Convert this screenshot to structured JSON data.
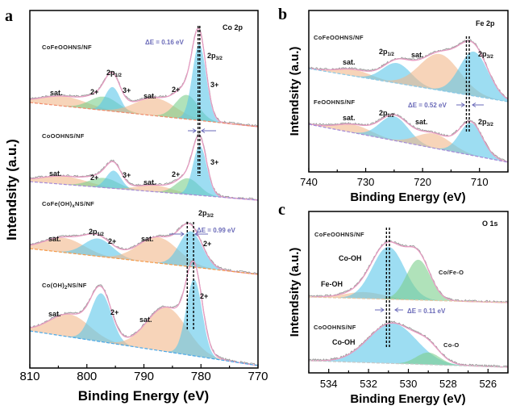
{
  "colors": {
    "co3": "#5cc6ea",
    "co2_green": "#7ccf8c",
    "sat": "#f2b88a",
    "envelope": "#e79cc2",
    "raw": "#9a9a9a",
    "delta": "#6a6ab8"
  },
  "panels": {
    "a": {
      "letter": "a",
      "core": "Co 2p",
      "xlabel": "Binding Energy (eV)",
      "ylabel": "Intendsity (a.u.)",
      "samples": [
        "CoFeOOHNS/NF",
        "CoOOHNS/NF",
        "CoFe(OH)",
        "Co(OH)"
      ],
      "sample_subs": {
        "cofeoh_sub": "x",
        "cofeoh_rest": "NS/NF",
        "cooh2_sub": "2",
        "cooh2_rest": "NS/NF"
      },
      "delta1": "ΔE = 0.16 eV",
      "delta2": "ΔE = 0.99 eV",
      "p": "2p",
      "p32": "3/2",
      "p12": "1/2",
      "sat": "sat.",
      "two": "2+",
      "three": "3+"
    },
    "b": {
      "letter": "b",
      "core": "Fe 2p",
      "xlabel": "Binding Energy (eV)",
      "ylabel": "Intendsity (a.u.)",
      "samples": [
        "CoFeOOHNS/NF",
        "FeOOHNS/NF"
      ],
      "delta": "ΔE = 0.52 eV",
      "p": "2p",
      "p32": "3/2",
      "p12": "1/2",
      "sat": "sat."
    },
    "c": {
      "letter": "c",
      "core": "O 1s",
      "xlabel": "Binding Energy (eV)",
      "ylabel": "Intendsity (a.u.)",
      "samples": [
        "CoFeOOHNS/NF",
        "CoOOHNS/NF"
      ],
      "delta": "ΔE = 0.11 eV",
      "cooh": "Co-OH",
      "feoh": "Fe-OH",
      "cofeo": "Co/Fe-O",
      "coo": "Co-O"
    }
  },
  "chart_data": [
    {
      "type": "line",
      "title": "Co 2p",
      "xlabel": "Binding Energy (eV)",
      "ylabel": "Intendsity (a.u.)",
      "xlim": [
        810,
        770
      ],
      "xticks": [
        810,
        800,
        790,
        780,
        770
      ],
      "reversed_x": true,
      "series": [
        {
          "name": "CoFeOOHNS/NF",
          "peaks": [
            {
              "label": "sat.",
              "center": 804,
              "height": 12,
              "sigma": 4,
              "color": "sat"
            },
            {
              "label": "2+",
              "center": 797,
              "height": 17,
              "sigma": 2.5,
              "color": "co2_green"
            },
            {
              "label": "3+",
              "center": 795.5,
              "height": 30,
              "sigma": 1.3,
              "color": "co3"
            },
            {
              "label": "sat.",
              "center": 788,
              "height": 22,
              "sigma": 3.5,
              "color": "sat"
            },
            {
              "label": "2+",
              "center": 782.5,
              "height": 30,
              "sigma": 2,
              "color": "co2_green"
            },
            {
              "label": "3+",
              "center": 780.3,
              "height": 95,
              "sigma": 1.2,
              "color": "co3"
            }
          ]
        },
        {
          "name": "CoOOHNS/NF",
          "peaks": [
            {
              "label": "sat.",
              "center": 804,
              "height": 10,
              "sigma": 4,
              "color": "sat"
            },
            {
              "label": "2+",
              "center": 797,
              "height": 12,
              "sigma": 2.5,
              "color": "co2_green"
            },
            {
              "label": "3+",
              "center": 795.3,
              "height": 22,
              "sigma": 1.3,
              "color": "co3"
            },
            {
              "label": "sat.",
              "center": 788,
              "height": 8,
              "sigma": 3,
              "color": "sat"
            },
            {
              "label": "2+",
              "center": 782.3,
              "height": 20,
              "sigma": 2,
              "color": "co2_green"
            },
            {
              "label": "3+",
              "center": 780.2,
              "height": 62,
              "sigma": 1.2,
              "color": "co3"
            }
          ]
        },
        {
          "name": "CoFe(OH)xNS/NF",
          "peaks": [
            {
              "label": "sat.",
              "center": 804,
              "height": 18,
              "sigma": 3.5,
              "color": "sat"
            },
            {
              "label": "2+",
              "center": 798,
              "height": 22,
              "sigma": 2.5,
              "color": "co3"
            },
            {
              "label": "sat.",
              "center": 787.5,
              "height": 32,
              "sigma": 3.5,
              "color": "sat"
            },
            {
              "label": "2+",
              "center": 781.8,
              "height": 44,
              "sigma": 2,
              "color": "co3"
            }
          ]
        },
        {
          "name": "Co(OH)2NS/NF",
          "peaks": [
            {
              "label": "sat.",
              "center": 803,
              "height": 28,
              "sigma": 3.5,
              "color": "sat"
            },
            {
              "label": "2+",
              "center": 797.5,
              "height": 60,
              "sigma": 1.8,
              "color": "co3"
            },
            {
              "label": "sat.",
              "center": 786,
              "height": 55,
              "sigma": 3.5,
              "color": "sat"
            },
            {
              "label": "2+",
              "center": 781.2,
              "height": 95,
              "sigma": 1.4,
              "color": "co3"
            }
          ]
        }
      ],
      "markers": [
        780.5,
        780.2,
        782.4,
        781.3
      ]
    },
    {
      "type": "line",
      "title": "Fe 2p",
      "xlabel": "Binding Energy (eV)",
      "ylabel": "Intendsity (a.u.)",
      "xlim": [
        740,
        705
      ],
      "xticks": [
        740,
        730,
        720,
        710
      ],
      "reversed_x": true,
      "series": [
        {
          "name": "CoFeOOHNS/NF",
          "peaks": [
            {
              "label": "sat.",
              "center": 732,
              "height": 8,
              "sigma": 3,
              "color": "sat"
            },
            {
              "label": "2p1/2",
              "center": 724.5,
              "height": 25,
              "sigma": 2.5,
              "color": "co3"
            },
            {
              "label": "sat.",
              "center": 717,
              "height": 45,
              "sigma": 3.5,
              "color": "sat"
            },
            {
              "label": "2p3/2",
              "center": 711,
              "height": 55,
              "sigma": 2.5,
              "color": "co3"
            }
          ]
        },
        {
          "name": "FeOOHNS/NF",
          "peaks": [
            {
              "label": "sat.",
              "center": 732,
              "height": 10,
              "sigma": 3,
              "color": "sat"
            },
            {
              "label": "2p1/2",
              "center": 725,
              "height": 30,
              "sigma": 2.5,
              "color": "co3"
            },
            {
              "label": "sat.",
              "center": 718,
              "height": 18,
              "sigma": 3,
              "color": "sat"
            },
            {
              "label": "2p3/2",
              "center": 711.5,
              "height": 40,
              "sigma": 2,
              "color": "co3"
            }
          ]
        }
      ],
      "markers": [
        712.3,
        711.8
      ]
    },
    {
      "type": "line",
      "title": "O 1s",
      "xlabel": "Binding Energy (eV)",
      "ylabel": "Intendsity (a.u.)",
      "xlim": [
        535,
        525
      ],
      "xticks": [
        534,
        532,
        530,
        528,
        526
      ],
      "reversed_x": true,
      "series": [
        {
          "name": "CoFeOOHNS/NF",
          "peaks": [
            {
              "label": "Fe-OH",
              "center": 532.2,
              "height": 8,
              "sigma": 1,
              "color": "sat"
            },
            {
              "label": "Co-OH",
              "center": 531,
              "height": 65,
              "sigma": 0.8,
              "color": "co3"
            },
            {
              "label": "Co/Fe-O",
              "center": 529.5,
              "height": 50,
              "sigma": 0.6,
              "color": "co2_green"
            }
          ]
        },
        {
          "name": "CoOOHNS/NF",
          "peaks": [
            {
              "label": "Co-OH",
              "center": 530.8,
              "height": 50,
              "sigma": 1.2,
              "color": "co3"
            },
            {
              "label": "Co-O",
              "center": 529,
              "height": 15,
              "sigma": 0.6,
              "color": "co2_green"
            }
          ]
        }
      ],
      "markers": [
        531.1,
        530.95
      ]
    }
  ]
}
